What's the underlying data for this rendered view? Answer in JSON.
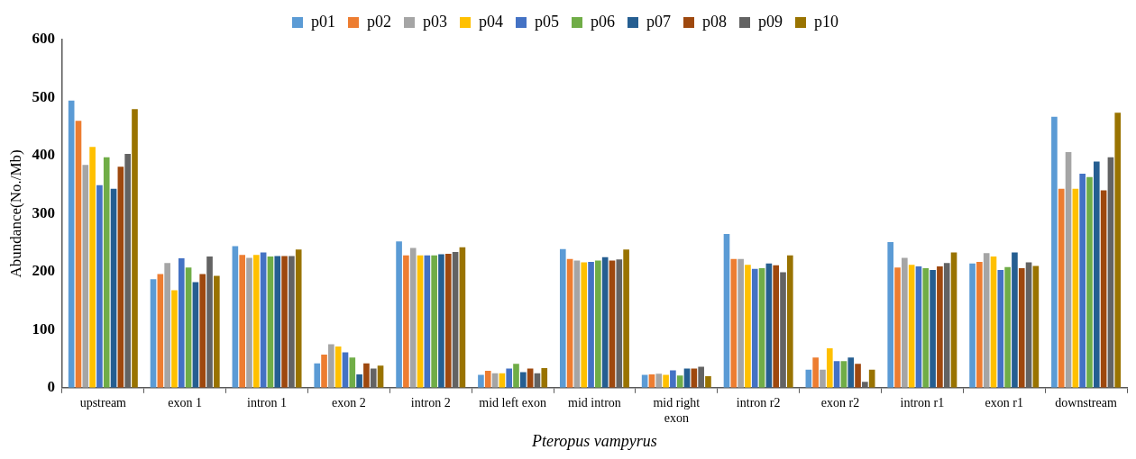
{
  "chart_data": {
    "type": "bar",
    "xlabel": "Pteropus vampyrus",
    "ylabel": "Abundance(No./Mb)",
    "categories": [
      "upstream",
      "exon 1",
      "intron 1",
      "exon 2",
      "intron 2",
      "mid left exon",
      "mid intron",
      "mid right exon",
      "intron r2",
      "exon r2",
      "intron r1",
      "exon r1",
      "downstream"
    ],
    "ylim": [
      0,
      600
    ],
    "yticks": [
      0,
      100,
      200,
      300,
      400,
      500,
      600
    ],
    "grid": false,
    "legend": "top",
    "series": [
      {
        "name": "p01",
        "color": "#5b9bd5",
        "values": [
          495,
          187,
          244,
          42,
          252,
          22,
          239,
          22,
          265,
          31,
          251,
          214,
          467
        ]
      },
      {
        "name": "p02",
        "color": "#ed7d31",
        "values": [
          460,
          196,
          229,
          57,
          228,
          29,
          222,
          23,
          222,
          52,
          207,
          217,
          343
        ]
      },
      {
        "name": "p03",
        "color": "#a5a5a5",
        "values": [
          384,
          215,
          224,
          75,
          241,
          25,
          219,
          24,
          222,
          31,
          224,
          232,
          406
        ]
      },
      {
        "name": "p04",
        "color": "#ffc000",
        "values": [
          415,
          168,
          229,
          71,
          228,
          25,
          216,
          22,
          212,
          68,
          212,
          226,
          343
        ]
      },
      {
        "name": "p05",
        "color": "#4472c4",
        "values": [
          349,
          223,
          233,
          61,
          228,
          33,
          217,
          30,
          205,
          46,
          209,
          203,
          369
        ]
      },
      {
        "name": "p06",
        "color": "#70ad47",
        "values": [
          397,
          207,
          226,
          52,
          228,
          41,
          219,
          21,
          206,
          46,
          206,
          208,
          363
        ]
      },
      {
        "name": "p07",
        "color": "#255e91",
        "values": [
          343,
          182,
          227,
          23,
          230,
          27,
          225,
          33,
          214,
          52,
          203,
          233,
          390
        ]
      },
      {
        "name": "p08",
        "color": "#9e480e",
        "values": [
          381,
          196,
          227,
          42,
          231,
          33,
          219,
          33,
          211,
          41,
          209,
          206,
          340
        ]
      },
      {
        "name": "p09",
        "color": "#636363",
        "values": [
          403,
          226,
          227,
          33,
          234,
          25,
          221,
          36,
          199,
          10,
          215,
          216,
          397
        ]
      },
      {
        "name": "p10",
        "color": "#997300",
        "values": [
          480,
          193,
          238,
          38,
          242,
          34,
          238,
          20,
          228,
          31,
          233,
          210,
          474
        ]
      }
    ]
  }
}
